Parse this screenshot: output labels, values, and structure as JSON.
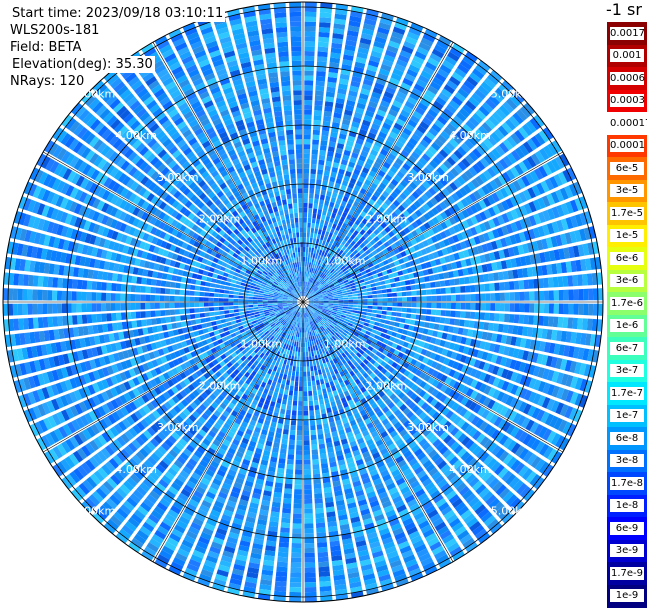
{
  "info": {
    "start_time": "Start time: 2023/09/18 03:10:11",
    "station": "WLS200s-181",
    "field": "Field: BETA",
    "elevation": "Elevation(deg): 35.30",
    "nrays": "NRays: 120"
  },
  "unit_label": "-1 sr",
  "range_ring_labels": [
    "1.00km",
    "2.00km",
    "3.00km",
    "4.00km",
    "5.00km"
  ],
  "colorbar": {
    "labels": [
      "0.0017",
      "0.001",
      "0.0006",
      "0.0003",
      "0.00017",
      "0.0001",
      "6e-5",
      "3e-5",
      "1.7e-5",
      "1e-5",
      "6e-6",
      "3e-6",
      "1.7e-6",
      "1e-6",
      "6e-7",
      "3e-7",
      "1.7e-7",
      "1e-7",
      "6e-8",
      "3e-8",
      "1.7e-8",
      "1e-8",
      "6e-9",
      "3e-9",
      "1.7e-9",
      "1e-9"
    ],
    "colors": [
      "#8b0000",
      "#b00000",
      "#d40000",
      "#f00000",
      "#ffffff",
      "#ff3800",
      "#ff6a00",
      "#ff9600",
      "#ffc400",
      "#ffee00",
      "#e6ff10",
      "#b8ff40",
      "#8cff6c",
      "#62ff96",
      "#3cffbe",
      "#20ffe0",
      "#00e8ff",
      "#00c0ff",
      "#0098ff",
      "#0070ff",
      "#0048ff",
      "#0020ff",
      "#0000ff",
      "#0000d0",
      "#0000a0",
      "#000080"
    ]
  }
}
